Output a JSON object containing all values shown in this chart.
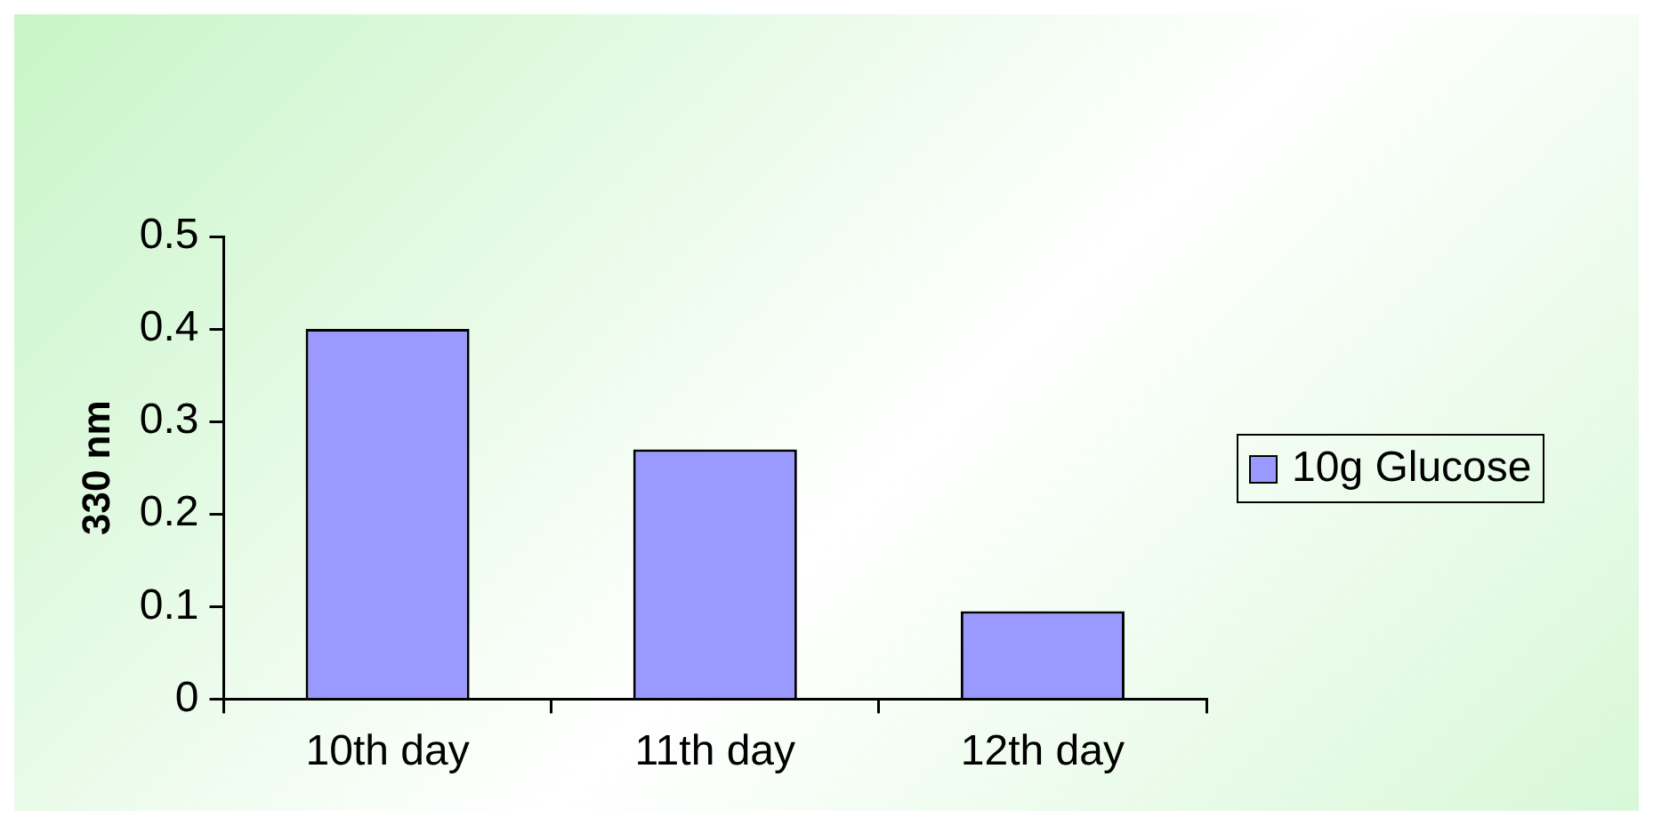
{
  "chart_data": {
    "type": "bar",
    "ylabel": "330 nm",
    "categories": [
      "10th day",
      "11th day",
      "12th day"
    ],
    "series": [
      {
        "name": "10g Glucose",
        "color": "#9999ff",
        "values": [
          0.4,
          0.27,
          0.095
        ]
      }
    ],
    "ylim": [
      0,
      0.5
    ],
    "yticks": [
      0,
      0.1,
      0.2,
      0.3,
      0.4,
      0.5
    ],
    "grid": false,
    "legend": "right"
  }
}
